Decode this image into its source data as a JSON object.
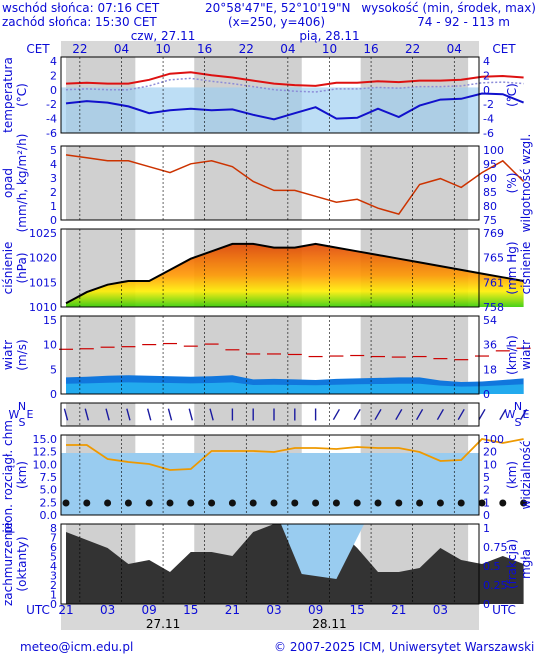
{
  "header": {
    "sunrise": "wschód słońca: 07:16 CET",
    "sunset": "zachód słońca: 15:30 CET",
    "coords": "20°58'47\"E, 52°10'19\"N",
    "grid": "(x=250,  y=406)",
    "alt_label": "wysokość (min, środek, max)",
    "alt_values": "74 - 92 - 113 m"
  },
  "days": {
    "d1": "czw, 27.11",
    "d2": "pią, 28.11",
    "date1": "27.11",
    "date2": "28.11"
  },
  "tz": {
    "top_left": "CET",
    "top_right": "CET",
    "bottom_left": "UTC",
    "bottom_right": "UTC"
  },
  "cet_ticks": [
    "22",
    "04",
    "10",
    "16",
    "22",
    "04",
    "10",
    "16",
    "22",
    "04"
  ],
  "utc_ticks": [
    "21",
    "03",
    "09",
    "15",
    "21",
    "03",
    "09",
    "15",
    "21",
    "03"
  ],
  "panels": {
    "temperature": {
      "left_label": "temperatura",
      "left_unit": "(°C)",
      "right_unit": "(°C)",
      "ticks": [
        "4",
        "2",
        "0",
        "-2",
        "-4",
        "-6"
      ]
    },
    "precip": {
      "left_label": "opad",
      "left_unit": "(mm/h, kg/m²/h)",
      "right_label": "wilgotność wzgl.",
      "right_unit": "(%)",
      "ticks_left": [
        "5",
        "4",
        "3",
        "2",
        "1",
        "0"
      ],
      "ticks_right": [
        "100",
        "95",
        "90",
        "85",
        "80",
        "75"
      ]
    },
    "pressure": {
      "left_label": "ciśnienie",
      "left_unit": "(hPa)",
      "right_label": "ciśnienie",
      "right_unit": "(mm Hg)",
      "ticks_left": [
        "1025",
        "1020",
        "1015",
        "1010"
      ],
      "ticks_right": [
        "769",
        "765",
        "761",
        "758"
      ]
    },
    "wind": {
      "left_label": "wiatr",
      "left_unit": "(m/s)",
      "right_label": "wiatr",
      "right_unit": "(km/h)",
      "ticks_left": [
        "15",
        "10",
        "5",
        "0"
      ],
      "ticks_right": [
        "54",
        "36",
        "18",
        "0"
      ]
    },
    "winddir": {
      "compass": [
        "N",
        "W",
        "E",
        "S"
      ]
    },
    "clouds": {
      "left_label": "pion. rozciągł. chm.",
      "left_unit": "(km)",
      "right_label": "widzialność",
      "right_unit": "(km)",
      "ticks_left": [
        "15.0",
        "12.5",
        "10.0",
        "7.5",
        "5.0",
        "2.5",
        "0.0"
      ],
      "ticks_right": [
        "100",
        "20",
        "10",
        "5",
        "2",
        "1",
        "0"
      ]
    },
    "cloudcover": {
      "left_label": "zachmurzenie",
      "left_unit": "(oktanty)",
      "right_label": "mgła",
      "right_unit": "(frakcja)",
      "ticks_left": [
        "8",
        "7",
        "6",
        "5",
        "4",
        "3",
        "2",
        "1",
        "0"
      ],
      "ticks_right": [
        "1",
        "0.75",
        "0.5",
        "0.25",
        "0"
      ]
    }
  },
  "footer": {
    "email": "meteo@icm.edu.pl",
    "copyright": "© 2007-2025 ICM, Uniwersytet Warszawski"
  },
  "colors": {
    "temp": "#dd1111",
    "dew": "#1111cc",
    "humidity": "#cc3300",
    "pressure_line": "#000000",
    "wind_mean": "#1177dd",
    "wind_gust": "#cc0000",
    "cloud_dark": "#333333",
    "sky": "#99ccf0"
  },
  "chart_data": {
    "type": "line",
    "x_hours": [
      0,
      3,
      6,
      9,
      12,
      15,
      18,
      21,
      24,
      27,
      30,
      33,
      36,
      39,
      42,
      45,
      48,
      51,
      54,
      57,
      60,
      63,
      66
    ],
    "x_start_utc": "21",
    "series": [
      {
        "name": "temperatura",
        "values": [
          0.5,
          0.6,
          0.5,
          0.5,
          1.0,
          1.8,
          2.0,
          1.6,
          1.3,
          0.9,
          0.5,
          0.3,
          0.2,
          0.6,
          0.6,
          0.8,
          0.7,
          0.9,
          0.9,
          1.0,
          1.4,
          1.5,
          1.3
        ]
      },
      {
        "name": "punkt rosy",
        "values": [
          -2.1,
          -1.8,
          -2.0,
          -2.5,
          -3.4,
          -3.0,
          -2.8,
          -3.0,
          -2.9,
          -3.6,
          -4.2,
          -3.4,
          -2.6,
          -4.1,
          -4.0,
          -2.8,
          -3.9,
          -2.4,
          -1.6,
          -1.5,
          -0.8,
          -0.9,
          -2.0
        ]
      },
      {
        "name": "wilgotność wzgl.",
        "values": [
          97,
          96,
          95,
          95,
          93,
          91,
          94,
          95,
          93,
          88,
          85,
          85,
          83,
          81,
          82,
          79,
          77,
          87,
          89,
          86,
          91,
          95,
          88
        ]
      },
      {
        "name": "ciśnienie",
        "values": [
          1007,
          1010,
          1012,
          1013,
          1013,
          1016,
          1019,
          1021,
          1023,
          1023,
          1022,
          1022,
          1023,
          1022,
          1021,
          1020,
          1019,
          1018,
          1017,
          1016,
          1015,
          1014,
          1013
        ]
      },
      {
        "name": "wiatr",
        "values": [
          3.2,
          3.3,
          3.5,
          3.6,
          3.5,
          3.4,
          3.3,
          3.4,
          3.6,
          2.8,
          2.9,
          2.8,
          2.7,
          2.9,
          3.0,
          3.1,
          3.2,
          3.2,
          2.6,
          2.3,
          2.4,
          2.7,
          3.0
        ]
      },
      {
        "name": "porywy",
        "values": [
          8.6,
          8.7,
          9.0,
          9.1,
          9.5,
          9.7,
          9.2,
          9.6,
          8.5,
          7.7,
          7.7,
          7.6,
          7.2,
          7.3,
          7.4,
          7.2,
          7.1,
          7.2,
          6.8,
          6.6,
          7.3,
          8.3,
          8.8
        ]
      },
      {
        "name": "widzialność",
        "values": [
          7.0,
          7.0,
          5.6,
          5.3,
          5.1,
          4.5,
          4.6,
          6.4,
          6.4,
          6.4,
          6.3,
          6.7,
          6.7,
          6.6,
          6.8,
          6.7,
          6.7,
          6.3,
          5.4,
          5.5,
          7.6,
          7.2,
          7.6
        ]
      }
    ],
    "ylim": {
      "temperature": [
        -6,
        4
      ],
      "precip": [
        0,
        5
      ],
      "humidity": [
        75,
        100
      ],
      "pressure": [
        1006,
        1027
      ],
      "wind": [
        0,
        15
      ]
    }
  }
}
